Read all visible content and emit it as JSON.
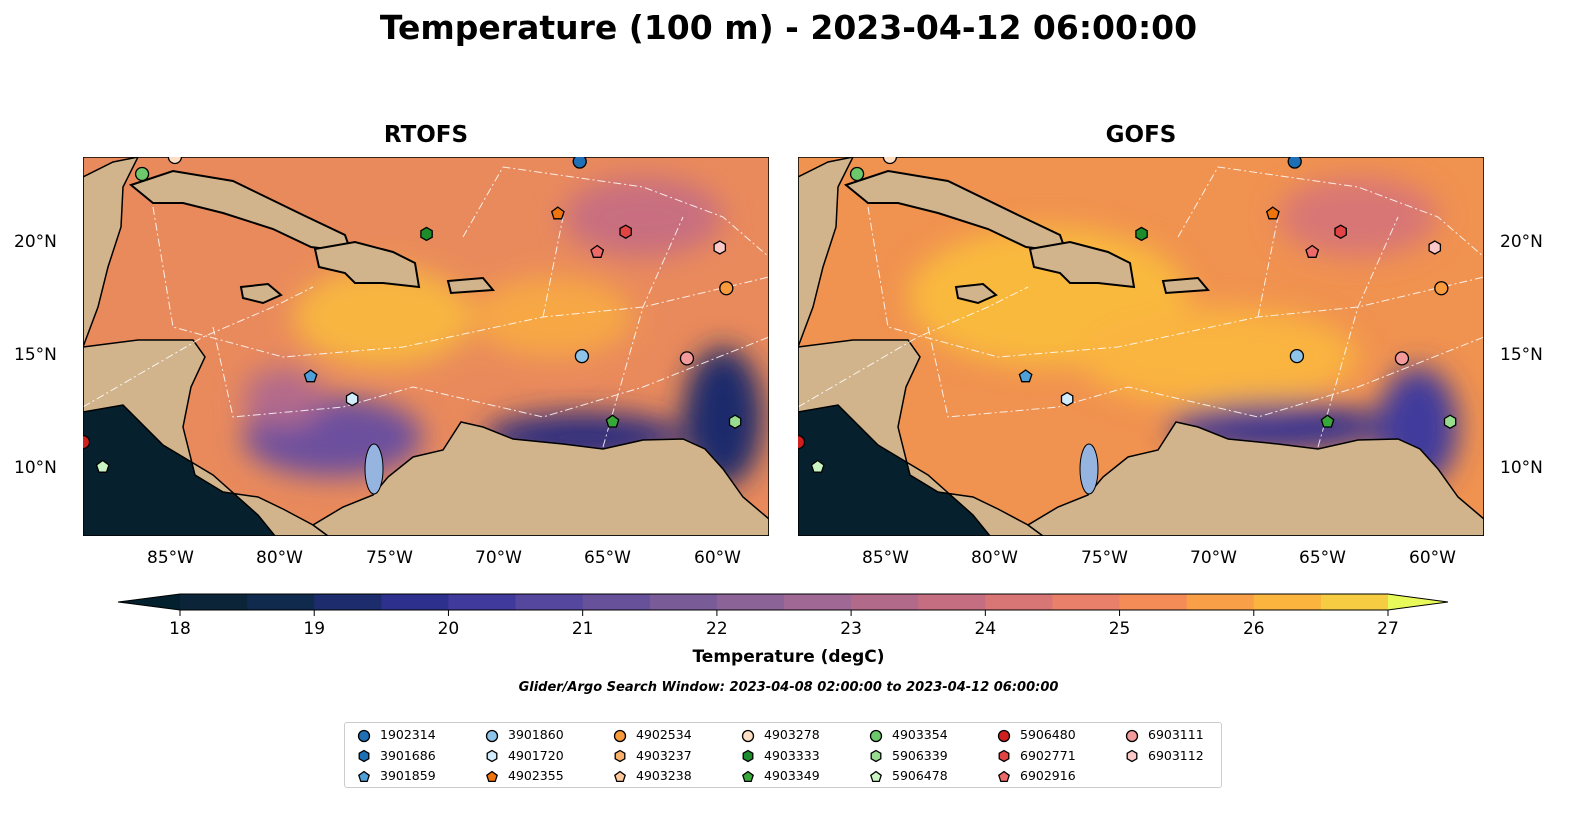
{
  "title": "Temperature (100 m) - 2023-04-12 06:00:00",
  "panels": [
    {
      "title": "RTOFS"
    },
    {
      "title": "GOFS"
    }
  ],
  "lon_ticks": [
    "85°W",
    "80°W",
    "75°W",
    "70°W",
    "65°W",
    "60°W"
  ],
  "lat_ticks": [
    "20°N",
    "15°N",
    "10°N"
  ],
  "colorbar": {
    "label": "Temperature (degC)",
    "ticks": [
      "18",
      "19",
      "20",
      "21",
      "22",
      "23",
      "24",
      "25",
      "26",
      "27"
    ],
    "min": 18,
    "max": 27,
    "step": 0.5,
    "colors": [
      "#0b2437",
      "#102a4e",
      "#1c2c6c",
      "#2d318d",
      "#3f3a9c",
      "#55479d",
      "#66519a",
      "#795b98",
      "#8b6396",
      "#a06894",
      "#b26a8b",
      "#c66e81",
      "#d87676",
      "#e9806a",
      "#f38c57",
      "#f99f47",
      "#fbb43d",
      "#f6cd42"
    ],
    "under": "#03202e",
    "over": "#e8f95a"
  },
  "search_window": "Glider/Argo Search Window: 2023-04-08 02:00:00 to 2023-04-12 06:00:00",
  "extent": {
    "lon": [
      -89.1,
      -57.75
    ],
    "lat": [
      7.05,
      23.8
    ]
  },
  "floats": [
    {
      "id": "1902314",
      "color": "#1f6fb4",
      "shape": "circle",
      "lon": -66.4,
      "lat": 23.6
    },
    {
      "id": "3901686",
      "color": "#1f6fb4",
      "shape": "hexagon"
    },
    {
      "id": "3901859",
      "color": "#4f9fd9",
      "shape": "pentagon",
      "lon": -78.7,
      "lat": 14.1
    },
    {
      "id": "3901860",
      "color": "#8ec3ea",
      "shape": "circle",
      "lon": -66.3,
      "lat": 15.0
    },
    {
      "id": "4901720",
      "color": "#d2ecfb",
      "shape": "hexagon",
      "lon": -76.8,
      "lat": 13.1
    },
    {
      "id": "4902355",
      "color": "#ef7410",
      "shape": "pentagon",
      "lon": -67.4,
      "lat": 21.3
    },
    {
      "id": "4902534",
      "color": "#f99a3c",
      "shape": "circle",
      "lon": -59.7,
      "lat": 18.0
    },
    {
      "id": "4903237",
      "color": "#fbb06b",
      "shape": "hexagon"
    },
    {
      "id": "4903238",
      "color": "#fdc89a",
      "shape": "pentagon"
    },
    {
      "id": "4903278",
      "color": "#fde0c4",
      "shape": "circle",
      "lon": -84.9,
      "lat": 23.8
    },
    {
      "id": "4903333",
      "color": "#1e8c2a",
      "shape": "hexagon",
      "lon": -73.4,
      "lat": 20.4
    },
    {
      "id": "4903349",
      "color": "#38a83a",
      "shape": "pentagon",
      "lon": -64.9,
      "lat": 12.1
    },
    {
      "id": "4903354",
      "color": "#6cc86a",
      "shape": "circle",
      "lon": -86.4,
      "lat": 23.05
    },
    {
      "id": "5906339",
      "color": "#98dd8f",
      "shape": "hexagon",
      "lon": -59.3,
      "lat": 12.1
    },
    {
      "id": "5906478",
      "color": "#caf5c2",
      "shape": "pentagon",
      "lon": -88.2,
      "lat": 10.1
    },
    {
      "id": "5906480",
      "color": "#cf1f1f",
      "shape": "circle",
      "lon": -89.1,
      "lat": 11.2
    },
    {
      "id": "6902771",
      "color": "#e24444",
      "shape": "hexagon",
      "lon": -64.3,
      "lat": 20.5
    },
    {
      "id": "6902916",
      "color": "#ee6a6a",
      "shape": "pentagon",
      "lon": -65.6,
      "lat": 19.6
    },
    {
      "id": "6903111",
      "color": "#f39a9a",
      "shape": "circle",
      "lon": -61.5,
      "lat": 14.9
    },
    {
      "id": "6903112",
      "color": "#fcc8c8",
      "shape": "hexagon",
      "lon": -60.0,
      "lat": 19.8
    }
  ]
}
